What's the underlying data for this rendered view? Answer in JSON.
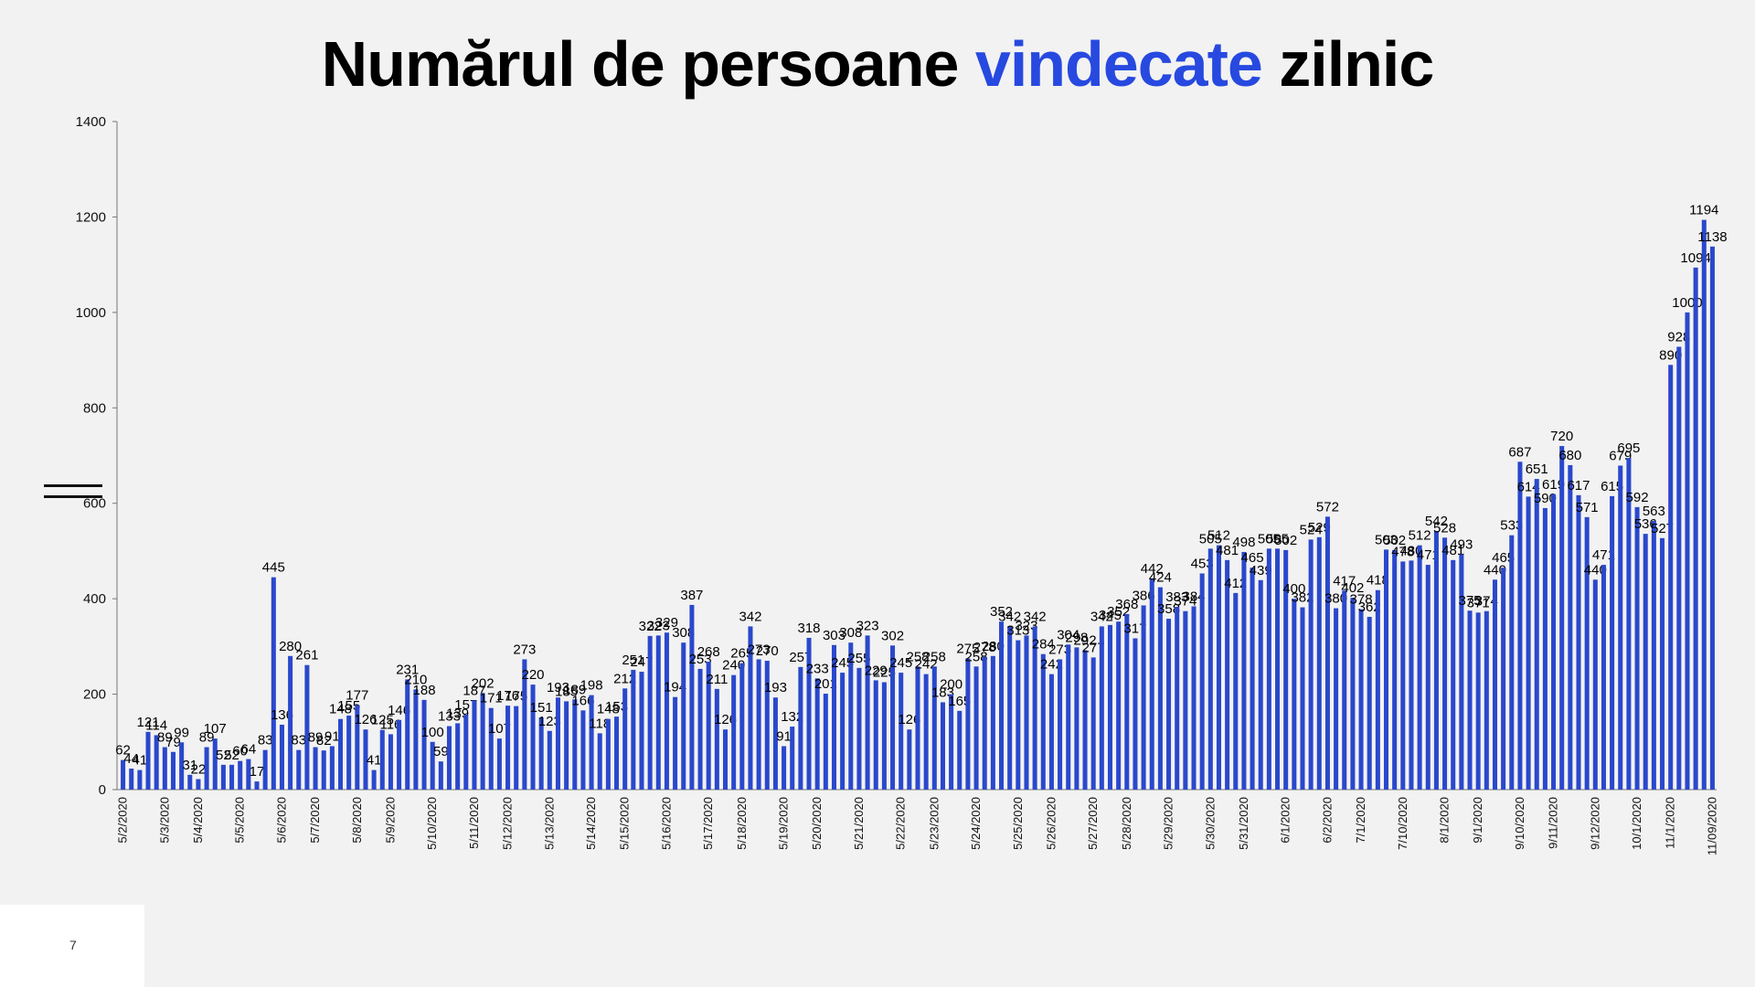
{
  "slide": {
    "title_before": "Numărul de persoane ",
    "title_highlight": "vindecate",
    "title_after": " zilnic",
    "page_number": "7"
  },
  "colors": {
    "bar": "#2a48cc",
    "title_highlight": "#2749e0"
  },
  "chart_data": {
    "type": "bar",
    "title": "Numărul de persoane vindecate zilnic",
    "xlabel": "",
    "ylabel": "",
    "ylim": [
      0,
      1400
    ],
    "yticks": [
      0,
      200,
      400,
      600,
      800,
      1000,
      1200,
      1400
    ],
    "grid": false,
    "legend": "none",
    "x_tick_labels_visible": [
      "5/2/2020",
      "5/3/2020",
      "5/4/2020",
      "5/5/2020",
      "5/6/2020",
      "5/7/2020",
      "5/8/2020",
      "5/9/2020",
      "5/10/2020",
      "5/11/2020",
      "5/12/2020",
      "5/13/2020",
      "5/14/2020",
      "5/15/2020",
      "5/16/2020",
      "5/17/2020",
      "5/18/2020",
      "5/19/2020",
      "5/20/2020",
      "5/21/2020",
      "5/22/2020",
      "5/23/2020",
      "5/24/2020",
      "5/25/2020",
      "5/26/2020",
      "5/27/2020",
      "5/28/2020",
      "5/29/2020",
      "5/30/2020",
      "5/31/2020",
      "6/1/2020",
      "6/2/2020",
      "7/1/2020",
      "7/10/2020",
      "8/1/2020",
      "9/1/2020",
      "9/10/2020",
      "9/11/2020",
      "9/12/2020",
      "10/1/2020",
      "11/1/2020",
      "11/09/2020"
    ],
    "values": [
      62,
      44,
      41,
      121,
      114,
      89,
      79,
      99,
      31,
      22,
      89,
      107,
      52,
      52,
      60,
      64,
      17,
      83,
      445,
      136,
      280,
      83,
      261,
      89,
      82,
      91,
      148,
      155,
      177,
      126,
      41,
      125,
      116,
      146,
      231,
      210,
      188,
      100,
      59,
      133,
      139,
      157,
      187,
      202,
      171,
      107,
      176,
      175,
      273,
      220,
      151,
      123,
      193,
      185,
      189,
      166,
      198,
      118,
      148,
      153,
      212,
      251,
      247,
      322,
      323,
      329,
      194,
      308,
      387,
      253,
      268,
      211,
      126,
      240,
      265,
      342,
      273,
      270,
      193,
      91,
      132,
      257,
      318,
      233,
      201,
      303,
      245,
      308,
      255,
      323,
      229,
      225,
      302,
      245,
      126,
      258,
      242,
      258,
      183,
      200,
      165,
      275,
      258,
      278,
      280,
      352,
      342,
      313,
      323,
      342,
      284,
      242,
      273,
      304,
      298,
      292,
      277,
      342,
      345,
      352,
      368,
      317,
      386,
      442,
      424,
      358,
      383,
      374,
      384,
      453,
      505,
      512,
      481,
      412,
      498,
      465,
      439,
      505,
      505,
      502,
      400,
      382,
      524,
      529,
      572,
      380,
      417,
      402,
      378,
      362,
      418,
      503,
      502,
      478,
      480,
      512,
      471,
      542,
      528,
      481,
      493,
      375,
      371,
      374,
      440,
      465,
      533,
      687,
      614,
      651,
      590,
      619,
      720,
      680,
      617,
      571,
      440,
      471,
      615,
      679,
      695,
      592,
      536,
      563,
      527,
      890,
      928,
      1000,
      1094,
      1194,
      1138
    ]
  }
}
